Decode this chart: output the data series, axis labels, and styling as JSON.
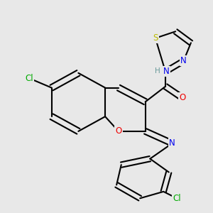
{
  "bg_color": "#e8e8e8",
  "bond_color": "#000000",
  "bond_width": 1.5,
  "atom_colors": {
    "C": "#000000",
    "H": "#6a9a9a",
    "N": "#0000ee",
    "O": "#ee0000",
    "S": "#bbbb00",
    "Cl": "#00aa00"
  },
  "font_size": 8.5
}
